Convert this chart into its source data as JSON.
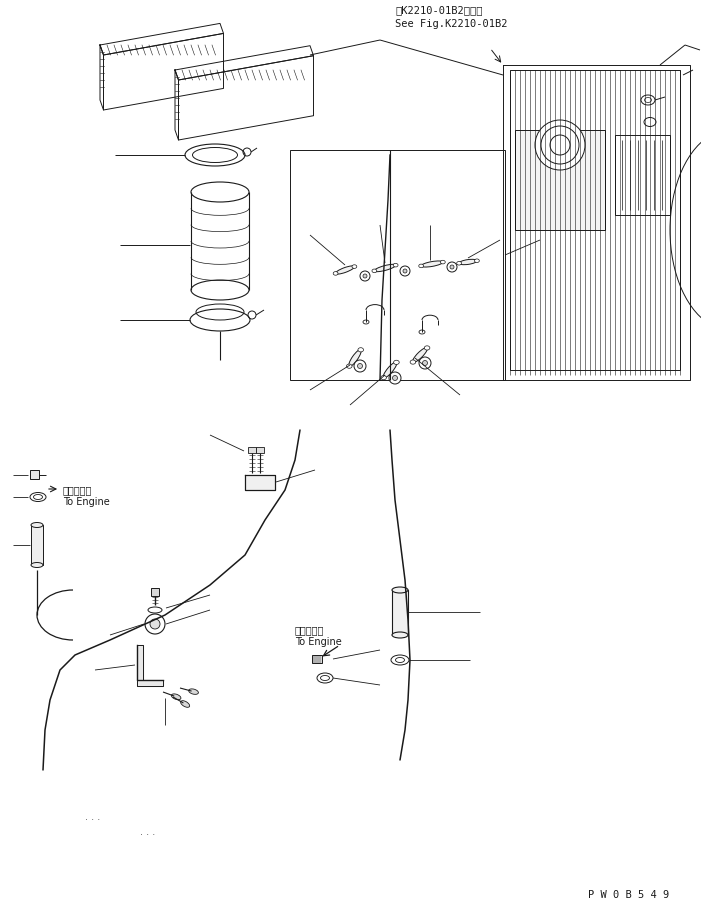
{
  "annotation1": "第K2210-01B2図参照",
  "annotation2": "See Fig.K2210-01B2",
  "label1": "エンジンへ\nTo Engine",
  "label2": "エンジンへ\nTo Engine",
  "part_number": "P W 0 B 5 4 9",
  "bg_color": "#ffffff",
  "line_color": "#1a1a1a",
  "fig_width": 7.01,
  "fig_height": 9.11
}
